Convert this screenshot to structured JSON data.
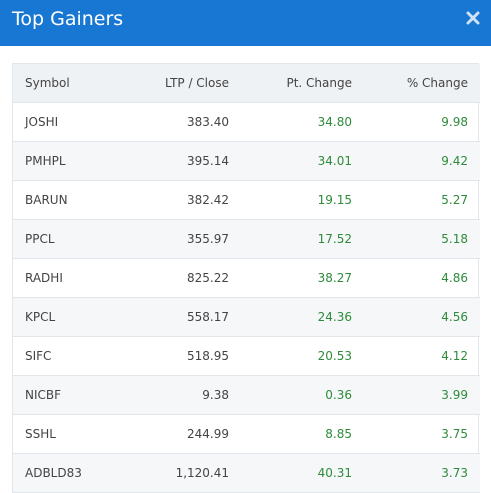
{
  "header": {
    "title": "Top Gainers",
    "close_icon": "close-icon"
  },
  "columns": [
    "Symbol",
    "LTP / Close",
    "Pt. Change",
    "% Change"
  ],
  "colors": {
    "header_bg": "#1877d2",
    "positive": "#2e8b3a"
  },
  "rows": [
    {
      "symbol": "JOSHI",
      "ltp": "383.40",
      "pt_change": "34.80",
      "pct_change": "9.98"
    },
    {
      "symbol": "PMHPL",
      "ltp": "395.14",
      "pt_change": "34.01",
      "pct_change": "9.42"
    },
    {
      "symbol": "BARUN",
      "ltp": "382.42",
      "pt_change": "19.15",
      "pct_change": "5.27"
    },
    {
      "symbol": "PPCL",
      "ltp": "355.97",
      "pt_change": "17.52",
      "pct_change": "5.18"
    },
    {
      "symbol": "RADHI",
      "ltp": "825.22",
      "pt_change": "38.27",
      "pct_change": "4.86"
    },
    {
      "symbol": "KPCL",
      "ltp": "558.17",
      "pt_change": "24.36",
      "pct_change": "4.56"
    },
    {
      "symbol": "SIFC",
      "ltp": "518.95",
      "pt_change": "20.53",
      "pct_change": "4.12"
    },
    {
      "symbol": "NICBF",
      "ltp": "9.38",
      "pt_change": "0.36",
      "pct_change": "3.99"
    },
    {
      "symbol": "SSHL",
      "ltp": "244.99",
      "pt_change": "8.85",
      "pct_change": "3.75"
    },
    {
      "symbol": "ADBLD83",
      "ltp": "1,120.41",
      "pt_change": "40.31",
      "pct_change": "3.73"
    }
  ]
}
